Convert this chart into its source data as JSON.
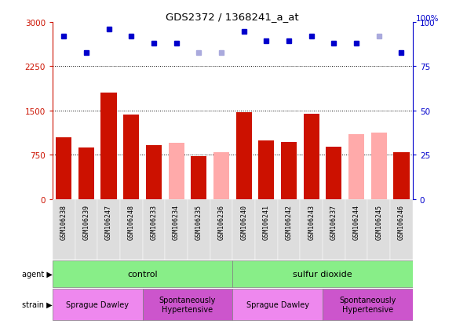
{
  "title": "GDS2372 / 1368241_a_at",
  "samples": [
    "GSM106238",
    "GSM106239",
    "GSM106247",
    "GSM106248",
    "GSM106233",
    "GSM106234",
    "GSM106235",
    "GSM106236",
    "GSM106240",
    "GSM106241",
    "GSM106242",
    "GSM106243",
    "GSM106237",
    "GSM106244",
    "GSM106245",
    "GSM106246"
  ],
  "count_present": [
    1050,
    870,
    1800,
    1430,
    920,
    null,
    730,
    null,
    1470,
    1000,
    970,
    1450,
    890,
    null,
    null,
    790
  ],
  "count_absent": [
    null,
    null,
    null,
    null,
    null,
    960,
    null,
    800,
    null,
    null,
    null,
    null,
    null,
    1100,
    1130,
    null
  ],
  "rank_values": [
    2760,
    2480,
    2880,
    2760,
    2640,
    2640,
    2480,
    2480,
    2840,
    2680,
    2680,
    2760,
    2640,
    2640,
    2760,
    2480
  ],
  "rank_absent_idx": [
    6,
    7,
    14
  ],
  "detection_absent_idx": [
    5,
    7,
    13,
    14
  ],
  "ylim_left": [
    0,
    3000
  ],
  "ylim_right": [
    0,
    100
  ],
  "yticks_left": [
    0,
    750,
    1500,
    2250,
    3000
  ],
  "yticks_right": [
    0,
    25,
    50,
    75,
    100
  ],
  "bar_color_present": "#cc1100",
  "bar_color_absent": "#ffaaaa",
  "rank_color_present": "#0000cc",
  "rank_color_absent": "#aaaadd",
  "agent_control_label": "control",
  "agent_so2_label": "sulfur dioxide",
  "strain_sd_label": "Sprague Dawley",
  "strain_sh_label": "Spontaneously\nHypertensive",
  "agent_color": "#88ee88",
  "strain_sd_color": "#ee88ee",
  "strain_sh_color": "#cc55cc",
  "left_axis_color": "#cc1100",
  "right_axis_color": "#0000cc",
  "tick_label_bg": "#dddddd",
  "n_samples": 16
}
